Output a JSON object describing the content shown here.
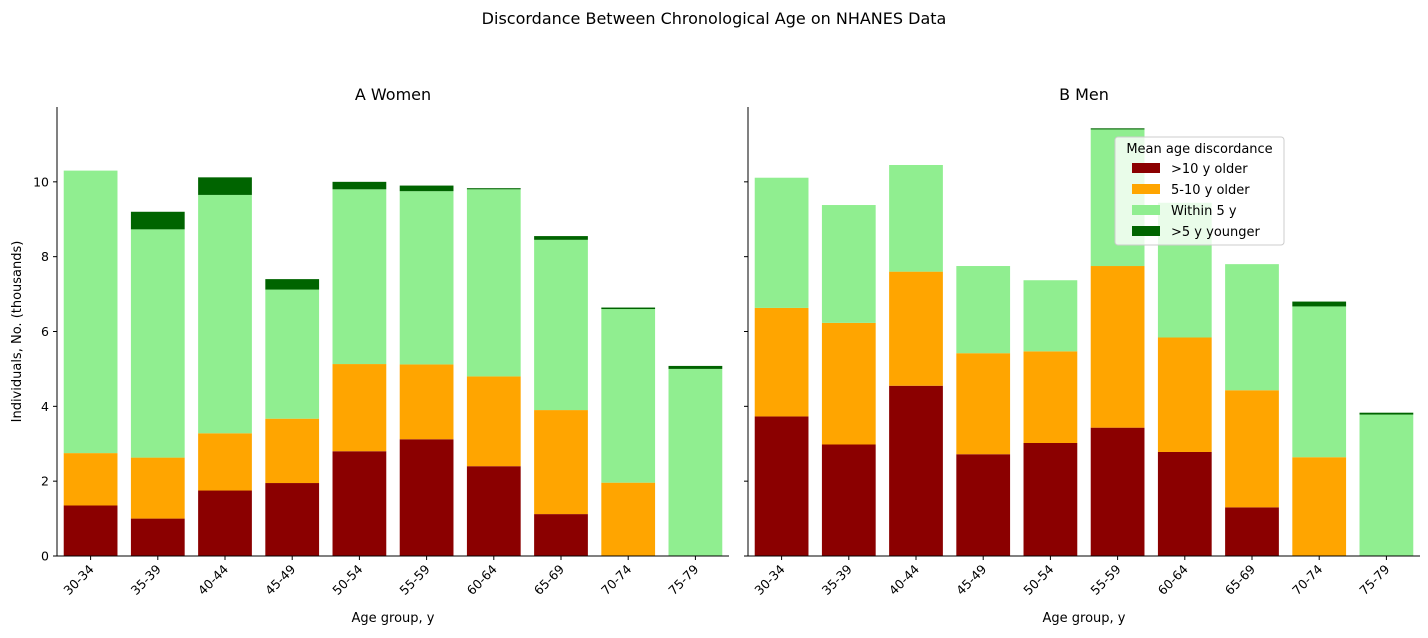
{
  "suptitle": "Discordance Between Chronological Age on NHANES Data",
  "colors": {
    "older10": "#8b0000",
    "older5_10": "#ffa500",
    "within5": "#90ee90",
    "younger5": "#006400"
  },
  "chart_data": [
    {
      "type": "bar",
      "stacked": true,
      "title": "A Women",
      "xlabel": "Age group, y",
      "ylabel": "Individuals, No. (thousands)",
      "ylim": [
        0,
        12
      ],
      "yticks": [
        "0",
        "2",
        "4",
        "6",
        "8",
        "10"
      ],
      "categories": [
        "30-34",
        "35-39",
        "40-44",
        "45-49",
        "50-54",
        "55-59",
        "60-64",
        "65-69",
        "70-74",
        "75-79"
      ],
      "series": [
        {
          "name": ">10 y older",
          "color_key": "older10",
          "values": [
            1.35,
            1.0,
            1.75,
            1.95,
            2.8,
            3.12,
            2.4,
            1.12,
            0,
            0
          ]
        },
        {
          "name": "5-10 y older",
          "color_key": "older5_10",
          "values": [
            1.4,
            1.63,
            1.53,
            1.72,
            2.33,
            2.0,
            2.4,
            2.78,
            1.96,
            0
          ]
        },
        {
          "name": "Within 5 y",
          "color_key": "within5",
          "values": [
            7.55,
            6.1,
            6.37,
            3.45,
            4.67,
            4.63,
            5.0,
            4.55,
            4.64,
            5.0
          ]
        },
        {
          "name": ">5 y younger",
          "color_key": "younger5",
          "values": [
            0,
            0.47,
            0.47,
            0.28,
            0.2,
            0.15,
            0.03,
            0.1,
            0.04,
            0.08
          ]
        }
      ],
      "legend": null
    },
    {
      "type": "bar",
      "stacked": true,
      "title": "B Men",
      "xlabel": "Age group, y",
      "ylabel": "",
      "ylim": [
        0,
        12
      ],
      "categories": [
        "30-34",
        "35-39",
        "40-44",
        "45-49",
        "50-54",
        "55-59",
        "60-64",
        "65-69",
        "70-74",
        "75-79"
      ],
      "series": [
        {
          "name": ">10 y older",
          "color_key": "older10",
          "values": [
            3.73,
            2.98,
            4.55,
            2.72,
            3.02,
            3.43,
            2.78,
            1.3,
            0,
            0
          ]
        },
        {
          "name": "5-10 y older",
          "color_key": "older5_10",
          "values": [
            2.9,
            3.25,
            3.05,
            2.7,
            2.45,
            4.32,
            3.06,
            3.13,
            2.64,
            0
          ]
        },
        {
          "name": "Within 5 y",
          "color_key": "within5",
          "values": [
            3.48,
            3.15,
            2.85,
            2.33,
            1.9,
            3.65,
            3.6,
            3.37,
            4.03,
            3.78
          ]
        },
        {
          "name": ">5 y younger",
          "color_key": "younger5",
          "values": [
            0,
            0,
            0,
            0,
            0,
            0.03,
            0,
            0,
            0.13,
            0.05
          ]
        }
      ],
      "legend": {
        "title": "Mean age discordance",
        "placement": "upper-right",
        "entries": [
          {
            "label": ">10 y older",
            "color_key": "older10"
          },
          {
            "label": "5-10 y older",
            "color_key": "older5_10"
          },
          {
            "label": "Within 5 y",
            "color_key": "within5"
          },
          {
            "label": ">5 y younger",
            "color_key": "younger5"
          }
        ]
      }
    }
  ]
}
